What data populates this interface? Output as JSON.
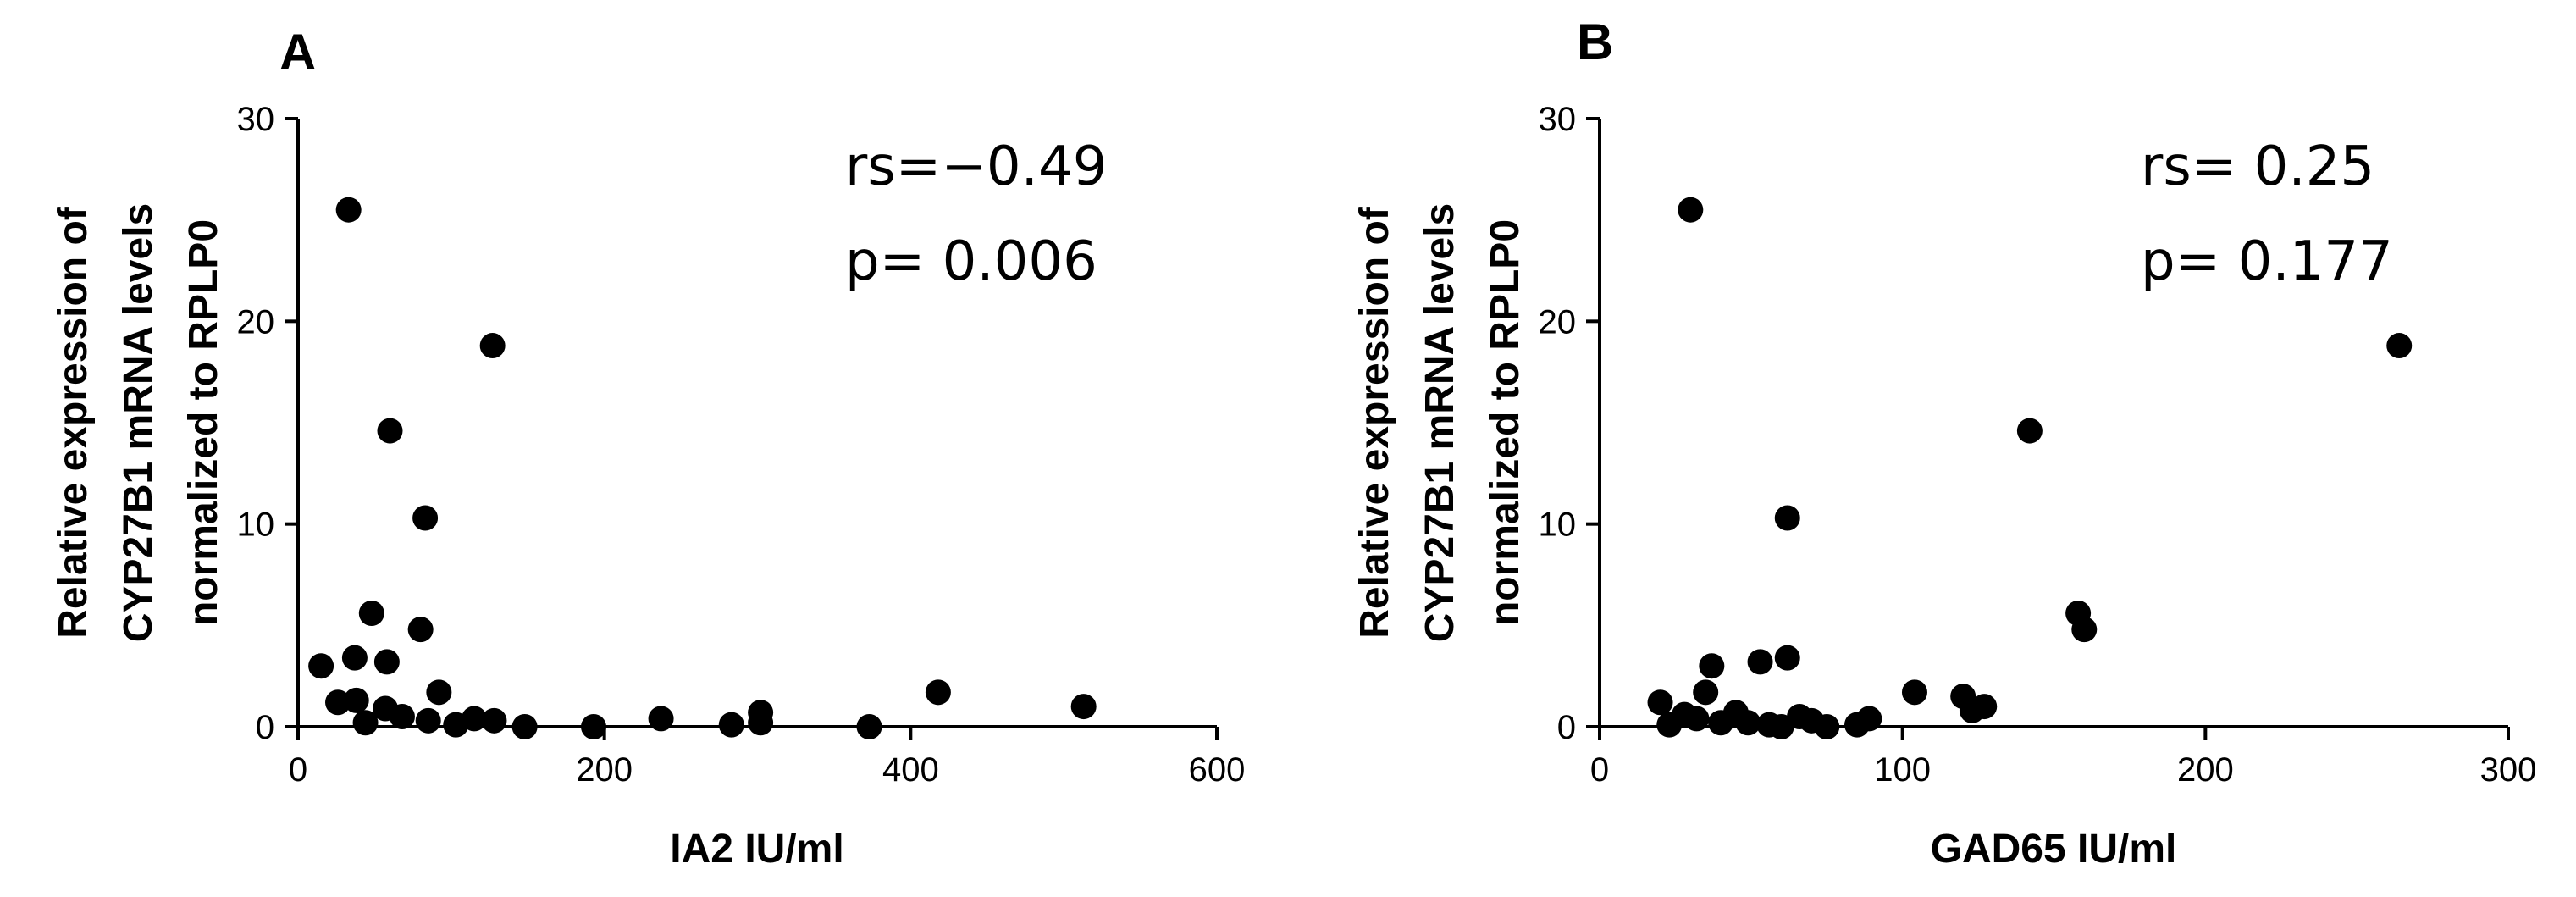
{
  "chart_data": [
    {
      "type": "scatter",
      "panel_label": "A",
      "xlabel": "IA2 IU/ml",
      "ylabel": [
        "Relative expression of",
        "CYP27B1 mRNA levels",
        "normalized to RPLP0"
      ],
      "xlim": [
        0,
        600
      ],
      "ylim": [
        0,
        30
      ],
      "xticks": [
        0,
        200,
        400,
        600
      ],
      "yticks": [
        0,
        10,
        20,
        30
      ],
      "grid": false,
      "annotations": [
        "rs=−0.49",
        "p= 0.006"
      ],
      "points": [
        {
          "x": 33,
          "y": 25.5
        },
        {
          "x": 127,
          "y": 18.8
        },
        {
          "x": 60,
          "y": 14.6
        },
        {
          "x": 83,
          "y": 10.3
        },
        {
          "x": 48,
          "y": 5.6
        },
        {
          "x": 80,
          "y": 4.8
        },
        {
          "x": 37,
          "y": 3.4
        },
        {
          "x": 15,
          "y": 3.0
        },
        {
          "x": 58,
          "y": 3.2
        },
        {
          "x": 92,
          "y": 1.7
        },
        {
          "x": 26,
          "y": 1.2
        },
        {
          "x": 38,
          "y": 1.3
        },
        {
          "x": 57,
          "y": 0.9
        },
        {
          "x": 68,
          "y": 0.5
        },
        {
          "x": 44,
          "y": 0.2
        },
        {
          "x": 85,
          "y": 0.3
        },
        {
          "x": 103,
          "y": 0.1
        },
        {
          "x": 115,
          "y": 0.4
        },
        {
          "x": 128,
          "y": 0.3
        },
        {
          "x": 148,
          "y": 0.0
        },
        {
          "x": 193,
          "y": 0.0
        },
        {
          "x": 237,
          "y": 0.4
        },
        {
          "x": 283,
          "y": 0.1
        },
        {
          "x": 302,
          "y": 0.7
        },
        {
          "x": 302,
          "y": 0.2
        },
        {
          "x": 373,
          "y": 0.0
        },
        {
          "x": 418,
          "y": 1.7
        },
        {
          "x": 513,
          "y": 1.0
        }
      ]
    },
    {
      "type": "scatter",
      "panel_label": "B",
      "xlabel": "GAD65 IU/ml",
      "ylabel": [
        "Relative expression of",
        "CYP27B1 mRNA levels",
        "normalized to RPLP0"
      ],
      "xlim": [
        0,
        300
      ],
      "ylim": [
        0,
        30
      ],
      "xticks": [
        0,
        100,
        200,
        300
      ],
      "yticks": [
        0,
        10,
        20,
        30
      ],
      "grid": false,
      "annotations": [
        "rs= 0.25",
        "p= 0.177"
      ],
      "points": [
        {
          "x": 30,
          "y": 25.5
        },
        {
          "x": 264,
          "y": 18.8
        },
        {
          "x": 142,
          "y": 14.6
        },
        {
          "x": 62,
          "y": 10.3
        },
        {
          "x": 158,
          "y": 5.6
        },
        {
          "x": 160,
          "y": 4.8
        },
        {
          "x": 62,
          "y": 3.4
        },
        {
          "x": 53,
          "y": 3.2
        },
        {
          "x": 37,
          "y": 3.0
        },
        {
          "x": 35,
          "y": 1.7
        },
        {
          "x": 104,
          "y": 1.7
        },
        {
          "x": 120,
          "y": 1.5
        },
        {
          "x": 20,
          "y": 1.2
        },
        {
          "x": 127,
          "y": 1.0
        },
        {
          "x": 123,
          "y": 0.8
        },
        {
          "x": 45,
          "y": 0.7
        },
        {
          "x": 28,
          "y": 0.6
        },
        {
          "x": 66,
          "y": 0.5
        },
        {
          "x": 89,
          "y": 0.4
        },
        {
          "x": 32,
          "y": 0.4
        },
        {
          "x": 70,
          "y": 0.3
        },
        {
          "x": 40,
          "y": 0.2
        },
        {
          "x": 49,
          "y": 0.2
        },
        {
          "x": 85,
          "y": 0.1
        },
        {
          "x": 23,
          "y": 0.1
        },
        {
          "x": 56,
          "y": 0.1
        },
        {
          "x": 75,
          "y": 0.0
        },
        {
          "x": 60,
          "y": 0.0
        }
      ]
    }
  ]
}
